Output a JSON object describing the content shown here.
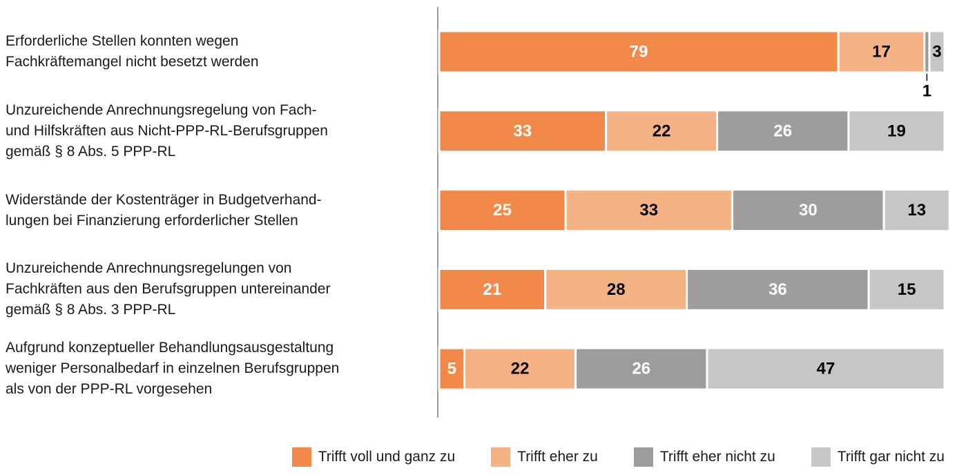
{
  "chart_data": {
    "type": "stacked-bar-horizontal",
    "categories": [
      "Erforderliche Stellen konnten wegen\nFachkräftemangel nicht besetzt werden",
      "Unzureichende Anrechnungsregelung von Fach-\nund Hilfskräften aus Nicht-PPP-RL-Berufsgruppen\ngemäß § 8 Abs. 5 PPP-RL",
      "Widerstände der Kostenträger in Budgetverhand-\nlungen bei Finanzierung erforderlicher Stellen",
      "Unzureichende Anrechnungsregelungen von\nFachkräften aus den Berufsgruppen untereinander\ngemäß § 8 Abs. 3 PPP-RL",
      "Aufgrund konzeptueller Behandlungsausgestaltung\nweniger Personalbedarf in einzelnen Berufsgruppen\nals von der PPP-RL vorgesehen"
    ],
    "series": [
      {
        "name": "Trifft voll und ganz zu",
        "color": "#f0894a",
        "label_color": "#ffffff",
        "values": [
          79,
          33,
          25,
          21,
          5
        ]
      },
      {
        "name": "Trifft eher zu",
        "color": "#f5b385",
        "label_color": "#000000",
        "values": [
          17,
          22,
          33,
          28,
          22
        ]
      },
      {
        "name": "Trifft eher nicht zu",
        "color": "#9d9d9c",
        "label_color": "#ffffff",
        "values": [
          1,
          26,
          30,
          36,
          26
        ]
      },
      {
        "name": "Trifft gar nicht zu",
        "color": "#c6c6c6",
        "label_color": "#000000",
        "values": [
          3,
          19,
          13,
          15,
          47
        ]
      }
    ],
    "xlim": [
      0,
      100
    ]
  }
}
